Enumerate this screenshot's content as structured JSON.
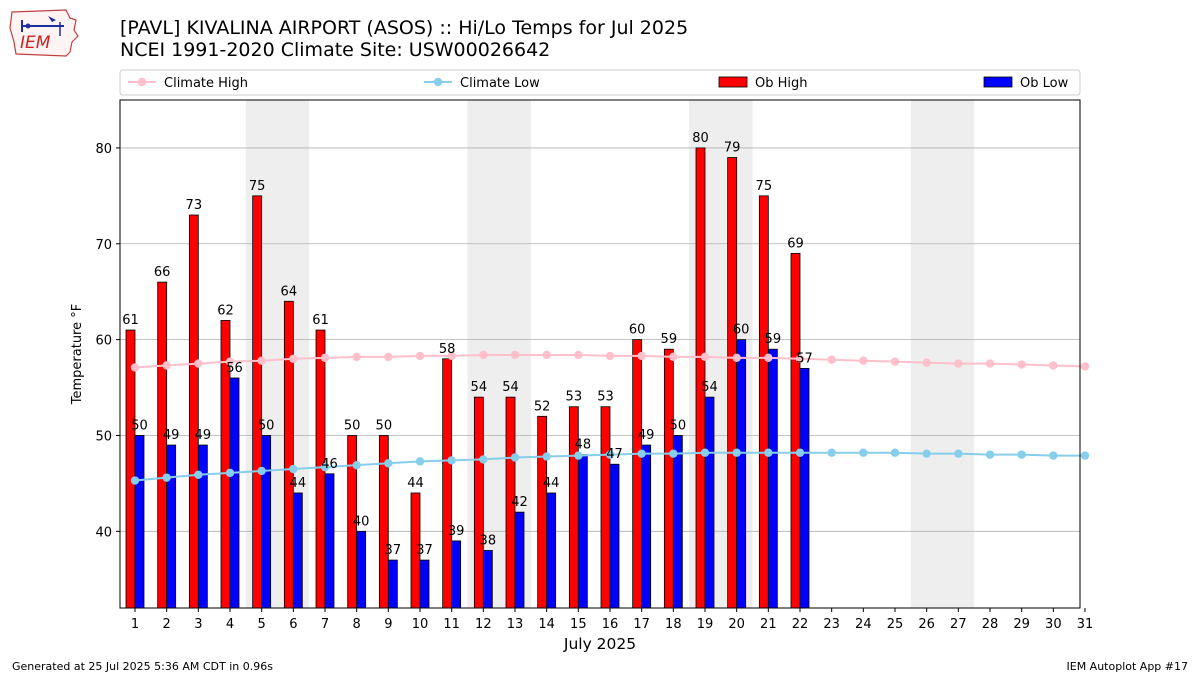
{
  "header": {
    "title_line1": "[PAVL] KIVALINA AIRPORT (ASOS) :: Hi/Lo Temps for Jul 2025",
    "title_line2": "NCEI 1991-2020 Climate Site: USW00026642"
  },
  "logo": {
    "text": "IEM"
  },
  "footer": {
    "left": "Generated at 25 Jul 2025 5:36 AM CDT in 0.96s",
    "right": "IEM Autoplot App #17"
  },
  "colors": {
    "ob_high": "#ff0000",
    "ob_low": "#0000ff",
    "climate_high": "#ffc0cb",
    "climate_low": "#87ceeb",
    "weekend_shade": "#eeeeee",
    "grid": "#b0b0b0"
  },
  "chart_data": {
    "type": "bar",
    "xlabel": "July 2025",
    "ylabel": "Temperature °F",
    "ylim": [
      32,
      85
    ],
    "yticks": [
      40,
      50,
      60,
      70,
      80
    ],
    "grid": "horizontal",
    "legend_position": "top",
    "categories": [
      "1",
      "2",
      "3",
      "4",
      "5",
      "6",
      "7",
      "8",
      "9",
      "10",
      "11",
      "12",
      "13",
      "14",
      "15",
      "16",
      "17",
      "18",
      "19",
      "20",
      "21",
      "22",
      "23",
      "24",
      "25",
      "26",
      "27",
      "28",
      "29",
      "30",
      "31"
    ],
    "shaded_days": [
      [
        5,
        6
      ],
      [
        12,
        13
      ],
      [
        19,
        20
      ],
      [
        26,
        27
      ]
    ],
    "series": [
      {
        "name": "Climate High",
        "kind": "line",
        "values": [
          57.1,
          57.3,
          57.5,
          57.7,
          57.8,
          58.0,
          58.1,
          58.2,
          58.2,
          58.3,
          58.3,
          58.4,
          58.4,
          58.4,
          58.4,
          58.3,
          58.3,
          58.2,
          58.2,
          58.1,
          58.1,
          58.0,
          57.9,
          57.8,
          57.7,
          57.6,
          57.5,
          57.5,
          57.4,
          57.3,
          57.2
        ]
      },
      {
        "name": "Climate Low",
        "kind": "line",
        "values": [
          45.3,
          45.6,
          45.9,
          46.1,
          46.3,
          46.5,
          46.7,
          46.9,
          47.1,
          47.3,
          47.4,
          47.5,
          47.7,
          47.8,
          47.9,
          48.0,
          48.1,
          48.1,
          48.2,
          48.2,
          48.2,
          48.2,
          48.2,
          48.2,
          48.2,
          48.1,
          48.1,
          48.0,
          48.0,
          47.9,
          47.9
        ]
      },
      {
        "name": "Ob High",
        "kind": "bar",
        "values": [
          61,
          66,
          73,
          62,
          75,
          64,
          61,
          50,
          50,
          44,
          58,
          54,
          54,
          52,
          53,
          53,
          60,
          59,
          80,
          79,
          75,
          69,
          null,
          null,
          null,
          null,
          null,
          null,
          null,
          null,
          null
        ]
      },
      {
        "name": "Ob Low",
        "kind": "bar",
        "values": [
          50,
          49,
          49,
          56,
          50,
          44,
          46,
          40,
          37,
          37,
          39,
          38,
          42,
          44,
          48,
          47,
          49,
          50,
          54,
          60,
          59,
          57,
          null,
          null,
          null,
          null,
          null,
          null,
          null,
          null,
          null
        ]
      }
    ]
  }
}
